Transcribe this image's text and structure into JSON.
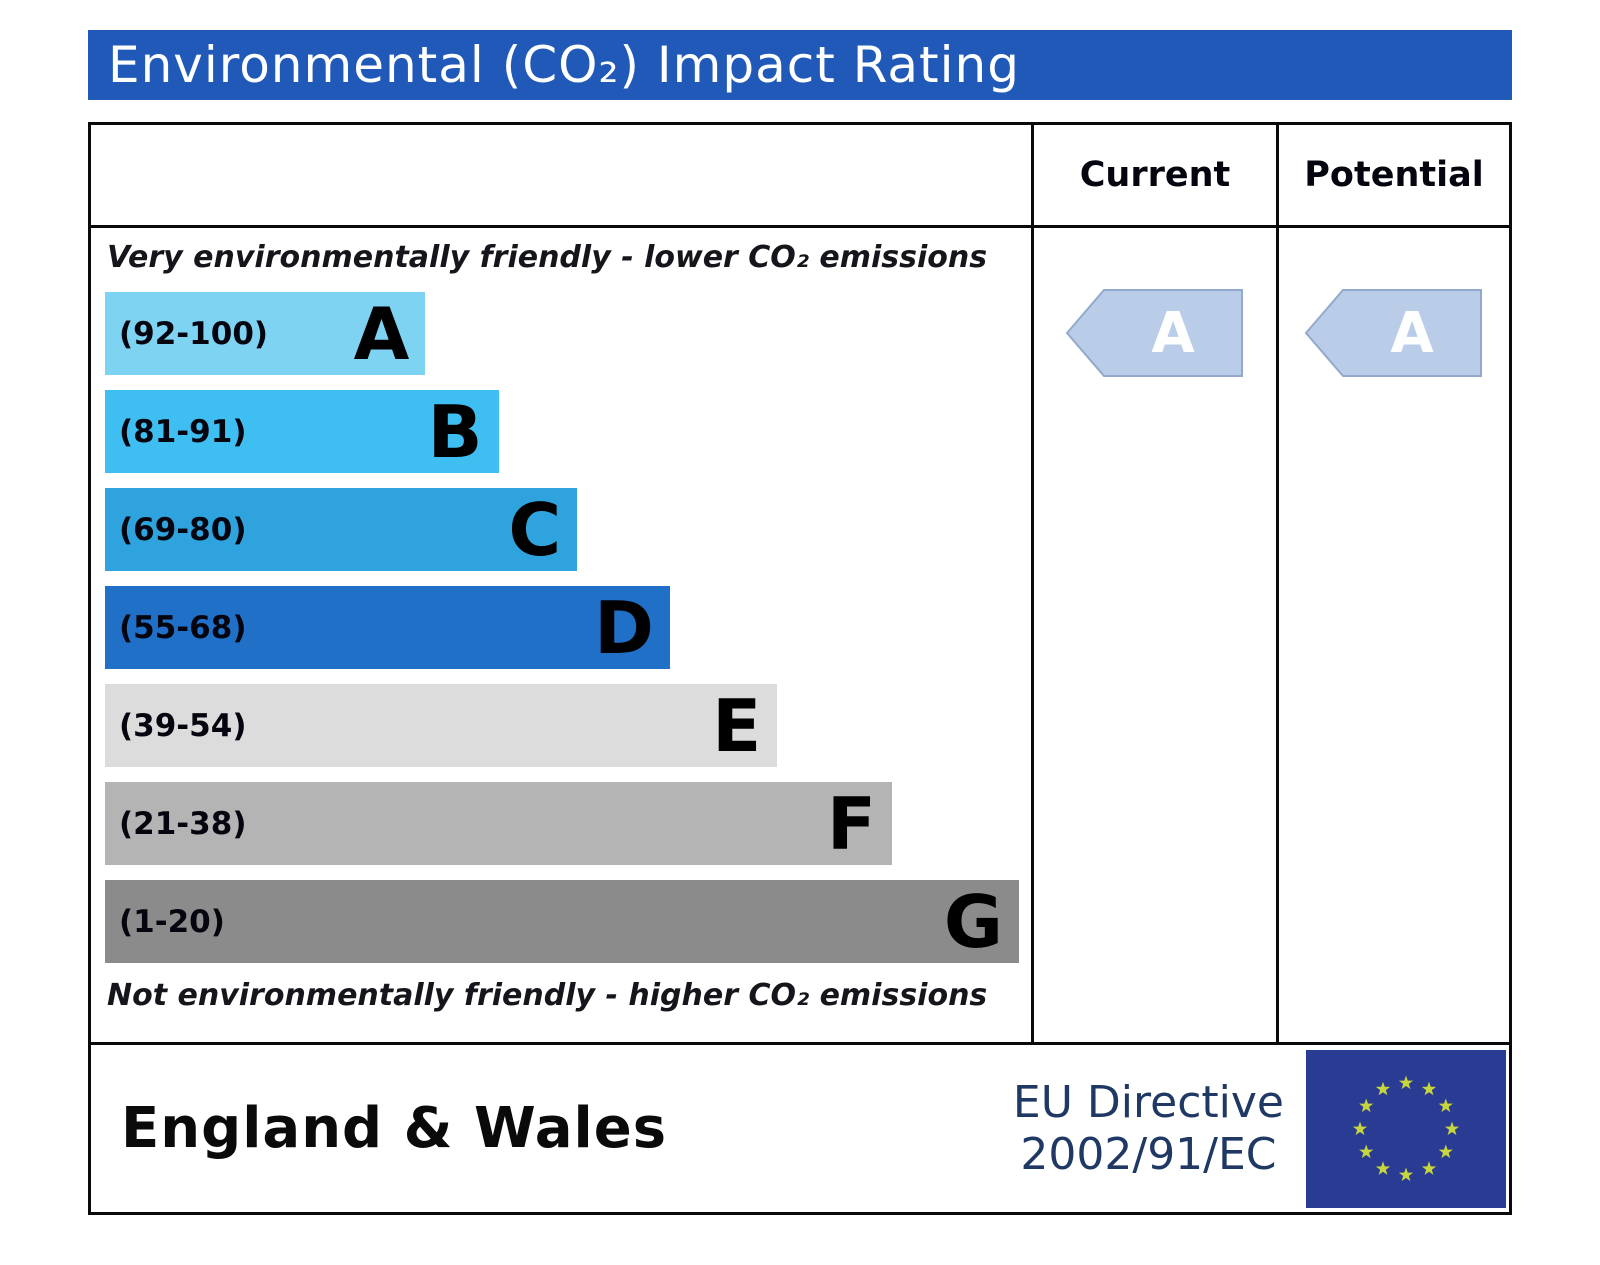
{
  "title": "Environmental (CO₂) Impact Rating",
  "table": {
    "current_header": "Current",
    "potential_header": "Potential",
    "top_note": "Very environmentally friendly - lower CO₂ emissions",
    "bottom_note": "Not environmentally friendly - higher CO₂ emissions"
  },
  "chart_data": {
    "type": "bar",
    "title": "Environmental (CO₂) Impact Rating",
    "orientation": "horizontal",
    "legend": false,
    "grid": false,
    "bands": [
      {
        "letter": "A",
        "range_label": "(92-100)",
        "range": [
          92,
          100
        ],
        "color": "#7fd3f2",
        "bar_width_pct": 34.6
      },
      {
        "letter": "B",
        "range_label": "(81-91)",
        "range": [
          81,
          91
        ],
        "color": "#3fbef2",
        "bar_width_pct": 42.5
      },
      {
        "letter": "C",
        "range_label": "(69-80)",
        "range": [
          69,
          80
        ],
        "color": "#2fa3dd",
        "bar_width_pct": 51.0
      },
      {
        "letter": "D",
        "range_label": "(55-68)",
        "range": [
          55,
          68
        ],
        "color": "#2070c8",
        "bar_width_pct": 61.0
      },
      {
        "letter": "E",
        "range_label": "(39-54)",
        "range": [
          39,
          54
        ],
        "color": "#dcdcdc",
        "bar_width_pct": 72.6
      },
      {
        "letter": "F",
        "range_label": "(21-38)",
        "range": [
          21,
          38
        ],
        "color": "#b4b4b4",
        "bar_width_pct": 85.0
      },
      {
        "letter": "G",
        "range_label": "(1-20)",
        "range": [
          1,
          20
        ],
        "color": "#8b8b8b",
        "bar_width_pct": 98.7
      }
    ],
    "current": {
      "rating": "A",
      "arrow_color": "#b9cde8"
    },
    "potential": {
      "rating": "A",
      "arrow_color": "#b9cde8"
    }
  },
  "footer": {
    "region": "England & Wales",
    "directive_line1": "EU Directive",
    "directive_line2": "2002/91/EC",
    "flag": "eu-flag-icon"
  },
  "colors": {
    "title_bar": "#2159b8",
    "border": "#0a0a0a",
    "directive_text": "#1f3864",
    "flag_blue": "#2a3b94",
    "flag_stars": "#c6d63d",
    "arrow_fill": "#b9cde8"
  }
}
